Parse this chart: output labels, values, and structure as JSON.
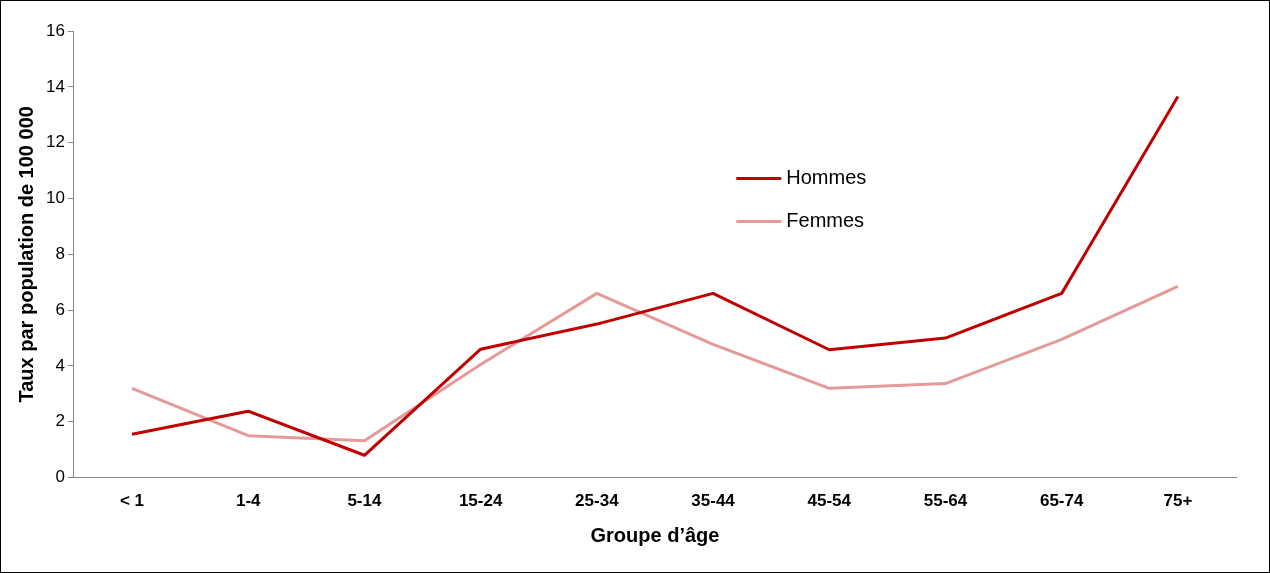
{
  "chart_data": {
    "type": "line",
    "xlabel": "Groupe d’âge",
    "ylabel": "Taux par population de 100 000",
    "categories": [
      "< 1",
      "1-4",
      "5-14",
      "15-24",
      "25-34",
      "35-44",
      "45-54",
      "55-64",
      "65-74",
      "75+"
    ],
    "series": [
      {
        "name": "Hommes",
        "color": "#c00000",
        "values": [
          1.55,
          2.38,
          0.8,
          4.6,
          5.5,
          6.6,
          4.58,
          5.0,
          6.6,
          13.65
        ]
      },
      {
        "name": "Femmes",
        "color": "#e59a9a",
        "values": [
          3.2,
          1.5,
          1.32,
          4.05,
          6.6,
          4.77,
          3.2,
          3.37,
          4.95,
          6.85
        ]
      }
    ],
    "ylim": [
      0,
      16
    ],
    "yticks": [
      0,
      2,
      4,
      6,
      8,
      10,
      12,
      14,
      16
    ],
    "grid": false,
    "legend": "center right",
    "marker": "none",
    "line_style": "solid"
  }
}
